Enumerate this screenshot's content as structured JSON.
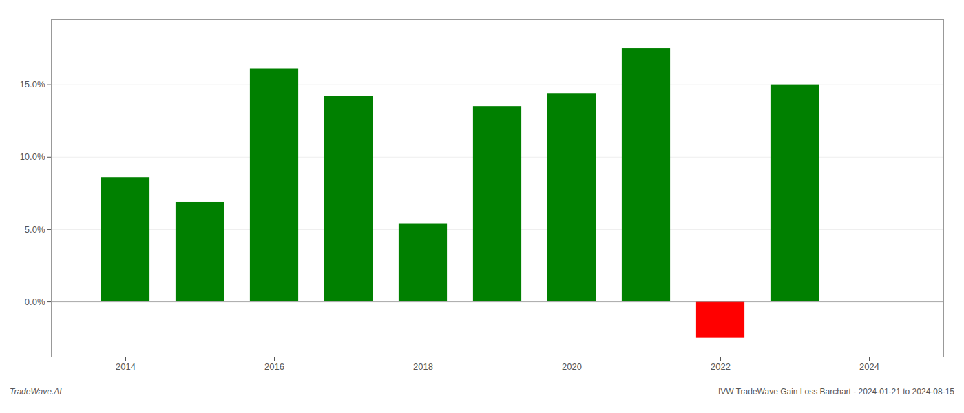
{
  "chart_data": {
    "type": "bar",
    "x": [
      2014,
      2015,
      2016,
      2017,
      2018,
      2019,
      2020,
      2021,
      2022,
      2023
    ],
    "values": [
      0.086,
      0.069,
      0.161,
      0.142,
      0.054,
      0.135,
      0.144,
      0.175,
      -0.025,
      0.15
    ],
    "colors": [
      "#008000",
      "#008000",
      "#008000",
      "#008000",
      "#008000",
      "#008000",
      "#008000",
      "#008000",
      "#ff0000",
      "#008000"
    ],
    "xlim": [
      2013,
      2025
    ],
    "xticks": [
      2014,
      2016,
      2018,
      2020,
      2022,
      2024
    ],
    "ylim": [
      -0.038,
      0.195
    ],
    "yticks": [
      {
        "value": 0.0,
        "label": "0.0%"
      },
      {
        "value": 0.05,
        "label": "5.0%"
      },
      {
        "value": 0.1,
        "label": "10.0%"
      },
      {
        "value": 0.15,
        "label": "15.0%"
      }
    ],
    "grid": true,
    "annotations": [
      "TradeWave.AI",
      "IVW TradeWave Gain Loss Barchart - 2024-01-21 to 2024-08-15"
    ]
  }
}
